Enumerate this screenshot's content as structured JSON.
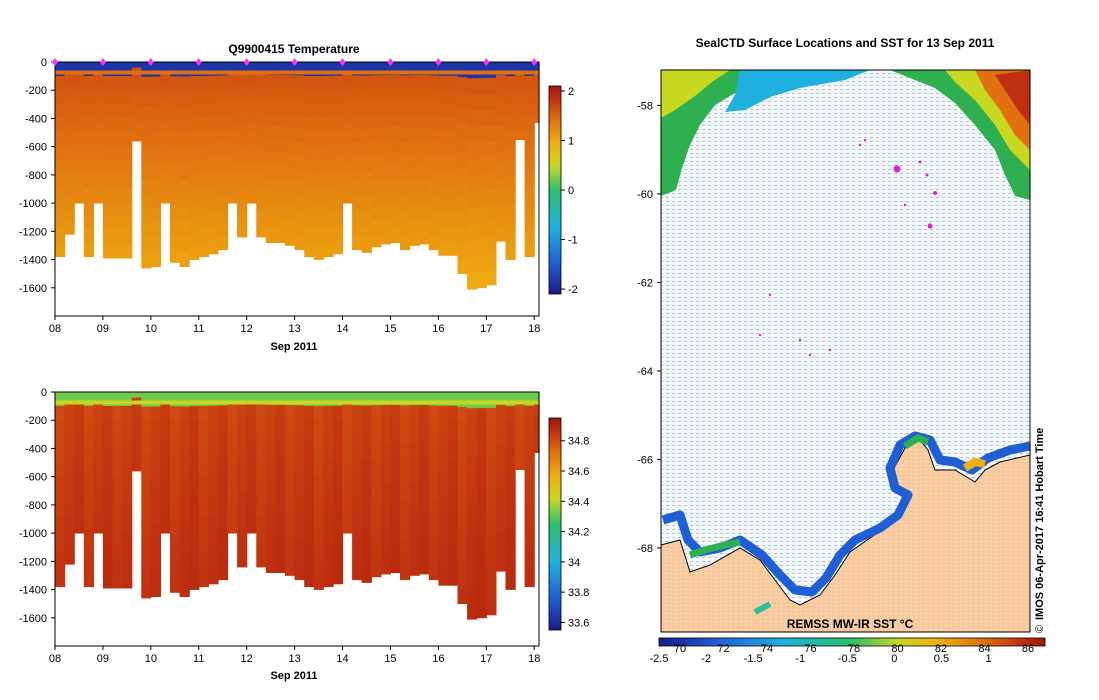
{
  "colors": {
    "water_bg": "#f4f8fb",
    "land": "#f7c99c",
    "coast": "#000000",
    "track": "#e020e0",
    "track_marker": "#ff33ff",
    "temp_scale": [
      "#1a1a8c",
      "#1f5fd6",
      "#20b0e0",
      "#2ec06a",
      "#c8d820",
      "#f0b010",
      "#e07010",
      "#c03010",
      "#a01808"
    ],
    "sal_scale": [
      "#1a1a8c",
      "#1f5fd6",
      "#20b0e0",
      "#2ec06a",
      "#c8d820",
      "#f0b010",
      "#e07010",
      "#c03010",
      "#a01808"
    ],
    "sst_scale": [
      "#1a1a8c",
      "#1f5fd6",
      "#20b0e0",
      "#2ec06a",
      "#c8d820",
      "#f0b010",
      "#e07010",
      "#c03010",
      "#a01808"
    ]
  },
  "chart_data": [
    {
      "type": "heatmap",
      "id": "temperature",
      "title": "Q9900415  Temperature",
      "xlabel": "Sep 2011",
      "x_ticks": [
        "08",
        "09",
        "10",
        "11",
        "12",
        "13",
        "14",
        "15",
        "16",
        "17",
        "18"
      ],
      "xlim": [
        8,
        18.1
      ],
      "ylim": [
        -1800,
        0
      ],
      "y_ticks": [
        "0",
        "-200",
        "-400",
        "-600",
        "-800",
        "-1000",
        "-1200",
        "-1400",
        "-1600"
      ],
      "colorbar": {
        "min": -2.1,
        "max": 2.1,
        "ticks": [
          "2",
          "1",
          "0",
          "-1",
          "-2"
        ]
      },
      "profile_days": [
        8.0,
        8.2,
        8.4,
        8.6,
        8.8,
        9.0,
        9.2,
        9.4,
        9.6,
        9.8,
        10.0,
        10.2,
        10.4,
        10.6,
        10.8,
        11.0,
        11.2,
        11.4,
        11.6,
        11.8,
        12.0,
        12.2,
        12.4,
        12.6,
        12.8,
        13.0,
        13.2,
        13.4,
        13.6,
        13.8,
        14.0,
        14.2,
        14.4,
        14.6,
        14.8,
        15.0,
        15.2,
        15.4,
        15.6,
        15.8,
        16.0,
        16.2,
        16.4,
        16.6,
        16.8,
        17.0,
        17.2,
        17.4,
        17.6,
        17.8,
        18.0
      ],
      "max_depths": [
        -1380,
        -1220,
        -1000,
        -1380,
        -1000,
        -1390,
        -1390,
        -1390,
        -560,
        -1460,
        -1450,
        -1000,
        -1420,
        -1450,
        -1400,
        -1380,
        -1360,
        -1330,
        -1000,
        -1240,
        -1000,
        -1240,
        -1280,
        -1280,
        -1300,
        -1330,
        -1380,
        -1400,
        -1380,
        -1360,
        -1000,
        -1330,
        -1350,
        -1310,
        -1290,
        -1280,
        -1330,
        -1300,
        -1290,
        -1330,
        -1370,
        -1370,
        -1500,
        -1610,
        -1600,
        -1580,
        -1270,
        -1400,
        -550,
        -1380,
        -430
      ],
      "gap_profiles": [
        8,
        47
      ],
      "surface_value": -1.9,
      "surface_depth": -60,
      "deep_value_shallow": 1.3,
      "deep_value_deep": 0.55
    },
    {
      "type": "heatmap",
      "id": "salinity",
      "title": "",
      "xlabel": "Sep 2011",
      "x_ticks": [
        "08",
        "09",
        "10",
        "11",
        "12",
        "13",
        "14",
        "15",
        "16",
        "17",
        "18"
      ],
      "xlim": [
        8,
        18.1
      ],
      "ylim": [
        -1800,
        0
      ],
      "y_ticks": [
        "0",
        "-200",
        "-400",
        "-600",
        "-800",
        "-1000",
        "-1200",
        "-1400",
        "-1600"
      ],
      "colorbar": {
        "min": 33.55,
        "max": 34.95,
        "ticks": [
          "34.8",
          "34.6",
          "34.4",
          "34.2",
          "34",
          "33.8",
          "33.6"
        ]
      },
      "surface_value": 34.15,
      "surface_depth": -60,
      "deep_value_shallow": 34.72,
      "deep_value_deep": 34.8
    },
    {
      "type": "heatmap",
      "id": "sst_map",
      "title": "SealCTD Surface Locations and SST for 13 Sep 2011",
      "y_ticks": [
        "-58",
        "-60",
        "-62",
        "-64",
        "-66",
        "-68"
      ],
      "ylim": [
        -69.9,
        -57.2
      ],
      "colorbar": {
        "min": -2.5,
        "max": 1.6,
        "ticks": [
          "-2.5",
          "-2",
          "-1.5",
          "-1",
          "-0.5",
          "0",
          "0.5",
          "1"
        ]
      },
      "colorbar_secondary_ticks": [
        "70",
        "72",
        "74",
        "76",
        "78",
        "80",
        "82",
        "84",
        "86"
      ],
      "annotation": "REMSS MW-IR SST °C",
      "credit_text": "IMOS 06-Apr-2017 16:41 Hobart Time",
      "copyright": "©"
    }
  ]
}
